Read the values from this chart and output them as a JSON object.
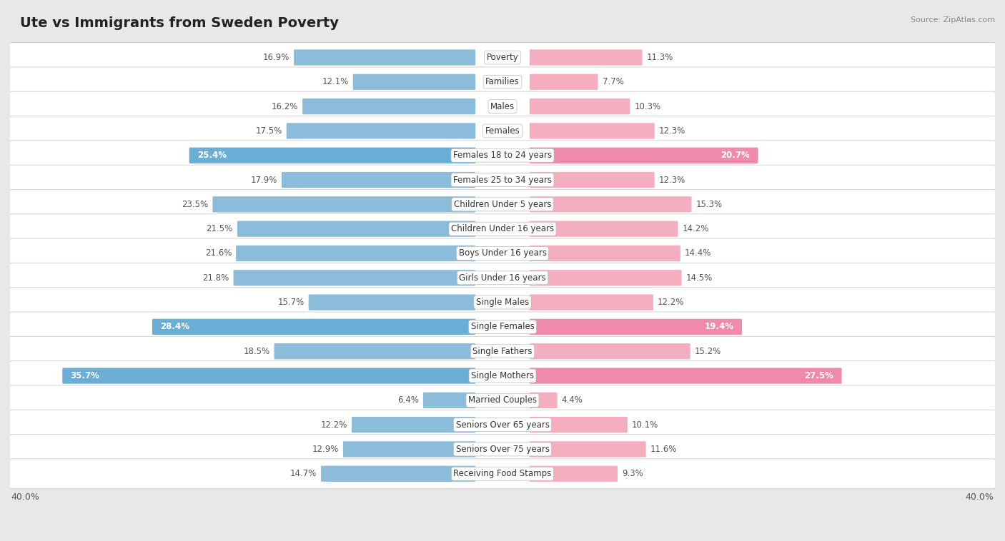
{
  "title": "Ute vs Immigrants from Sweden Poverty",
  "source": "Source: ZipAtlas.com",
  "categories": [
    "Poverty",
    "Families",
    "Males",
    "Females",
    "Females 18 to 24 years",
    "Females 25 to 34 years",
    "Children Under 5 years",
    "Children Under 16 years",
    "Boys Under 16 years",
    "Girls Under 16 years",
    "Single Males",
    "Single Females",
    "Single Fathers",
    "Single Mothers",
    "Married Couples",
    "Seniors Over 65 years",
    "Seniors Over 75 years",
    "Receiving Food Stamps"
  ],
  "ute_values": [
    16.9,
    12.1,
    16.2,
    17.5,
    25.4,
    17.9,
    23.5,
    21.5,
    21.6,
    21.8,
    15.7,
    28.4,
    18.5,
    35.7,
    6.4,
    12.2,
    12.9,
    14.7
  ],
  "immigrant_values": [
    11.3,
    7.7,
    10.3,
    12.3,
    20.7,
    12.3,
    15.3,
    14.2,
    14.4,
    14.5,
    12.2,
    19.4,
    15.2,
    27.5,
    4.4,
    10.1,
    11.6,
    9.3
  ],
  "ute_color_normal": "#8bbcda",
  "ute_color_highlight": "#6aadd5",
  "immigrant_color_normal": "#f5aec0",
  "immigrant_color_highlight": "#f08aab",
  "background_color": "#e8e8e8",
  "row_bg_color": "#ffffff",
  "max_value": 40.0,
  "label_fontsize": 8.5,
  "title_fontsize": 14,
  "source_fontsize": 8,
  "axis_label_fontsize": 9,
  "highlight_rows": [
    4,
    11,
    13
  ]
}
